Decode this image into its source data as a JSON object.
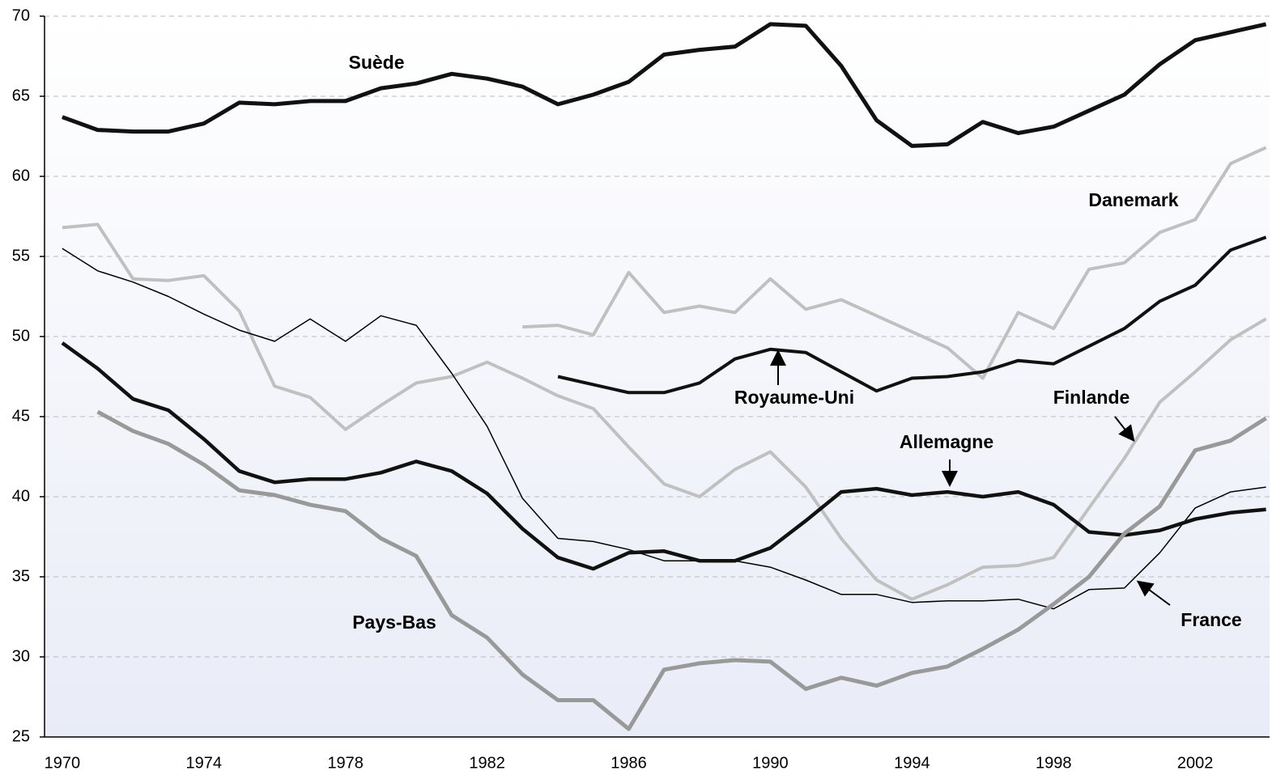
{
  "chart_data": {
    "type": "line",
    "x": [
      1970,
      1971,
      1972,
      1973,
      1974,
      1975,
      1976,
      1977,
      1978,
      1979,
      1980,
      1981,
      1982,
      1983,
      1984,
      1985,
      1986,
      1987,
      1988,
      1989,
      1990,
      1991,
      1992,
      1993,
      1994,
      1995,
      1996,
      1997,
      1998,
      1999,
      2000,
      2001,
      2002,
      2003,
      2004
    ],
    "xlim": [
      1969.5,
      2004.1
    ],
    "xticks": [
      1970,
      1974,
      1978,
      1982,
      1986,
      1990,
      1994,
      1998,
      2002
    ],
    "ylim": [
      25,
      70
    ],
    "yticks": [
      25,
      30,
      35,
      40,
      45,
      50,
      55,
      60,
      65,
      70
    ],
    "grid": true,
    "series": [
      {
        "name": "Suède",
        "color": "#111111",
        "values": [
          63.7,
          62.9,
          62.8,
          62.8,
          63.3,
          64.6,
          64.5,
          64.7,
          64.7,
          65.5,
          65.8,
          66.4,
          66.1,
          65.6,
          64.5,
          65.1,
          65.9,
          67.6,
          67.9,
          68.1,
          69.5,
          69.4,
          66.9,
          63.5,
          61.9,
          62.0,
          63.4,
          62.7,
          63.1,
          64.1,
          65.1,
          67.0,
          68.5,
          69.0,
          69.5
        ]
      },
      {
        "name": "Danemark",
        "color": "#c0c0c0",
        "values": [
          null,
          null,
          null,
          null,
          null,
          null,
          null,
          null,
          null,
          null,
          null,
          null,
          null,
          50.6,
          50.7,
          50.1,
          54.0,
          51.5,
          51.9,
          51.5,
          53.6,
          51.7,
          52.3,
          51.3,
          50.3,
          49.3,
          47.4,
          51.5,
          50.5,
          54.2,
          54.6,
          56.5,
          57.3,
          60.8,
          61.8
        ]
      },
      {
        "name": "Royaume-Uni",
        "color": "#111111",
        "values": [
          null,
          null,
          null,
          null,
          null,
          null,
          null,
          null,
          null,
          null,
          null,
          null,
          null,
          null,
          47.5,
          47.0,
          46.5,
          46.5,
          47.1,
          48.6,
          49.2,
          49.0,
          47.8,
          46.6,
          47.4,
          47.5,
          47.8,
          48.5,
          48.3,
          49.4,
          50.5,
          52.2,
          53.2,
          55.4,
          56.2
        ]
      },
      {
        "name": "Finlande",
        "color": "#c0c0c0",
        "values": [
          56.8,
          57.0,
          53.6,
          53.5,
          53.8,
          51.6,
          46.9,
          46.2,
          44.2,
          45.7,
          47.1,
          47.5,
          48.4,
          47.4,
          46.3,
          45.5,
          43.1,
          40.8,
          40.0,
          41.7,
          42.8,
          40.6,
          37.4,
          34.8,
          33.6,
          34.5,
          35.6,
          35.7,
          36.2,
          39.3,
          42.4,
          45.9,
          47.8,
          49.8,
          51.1
        ]
      },
      {
        "name": "France",
        "color": "#000000",
        "values": [
          55.5,
          54.1,
          53.4,
          52.5,
          51.4,
          50.4,
          49.7,
          51.1,
          49.7,
          51.3,
          50.7,
          47.7,
          44.4,
          39.9,
          37.4,
          37.2,
          36.7,
          36.0,
          36.0,
          36.0,
          35.6,
          34.8,
          33.9,
          33.9,
          33.4,
          33.5,
          33.5,
          33.6,
          33.0,
          34.2,
          34.3,
          36.5,
          39.3,
          40.3,
          40.6
        ]
      },
      {
        "name": "Allemagne",
        "color": "#111111",
        "values": [
          49.6,
          48.0,
          46.1,
          45.4,
          43.6,
          41.6,
          40.9,
          41.1,
          41.1,
          41.5,
          42.2,
          41.6,
          40.2,
          38.0,
          36.2,
          35.5,
          36.5,
          36.6,
          36.0,
          36.0,
          36.8,
          38.5,
          40.3,
          40.5,
          40.1,
          40.3,
          40.0,
          40.3,
          39.5,
          37.8,
          37.6,
          37.9,
          38.6,
          39.0,
          39.2
        ]
      },
      {
        "name": "Pays-Bas",
        "color": "#999999",
        "values": [
          null,
          45.3,
          44.1,
          43.3,
          42.0,
          40.4,
          40.1,
          39.5,
          39.1,
          37.4,
          36.3,
          32.6,
          31.2,
          28.9,
          27.3,
          27.3,
          25.5,
          29.2,
          29.6,
          29.8,
          29.7,
          28.0,
          28.7,
          28.2,
          29.0,
          29.4,
          30.5,
          31.7,
          33.3,
          35.0,
          37.7,
          39.4,
          42.9,
          43.5,
          44.9
        ]
      }
    ]
  }
}
